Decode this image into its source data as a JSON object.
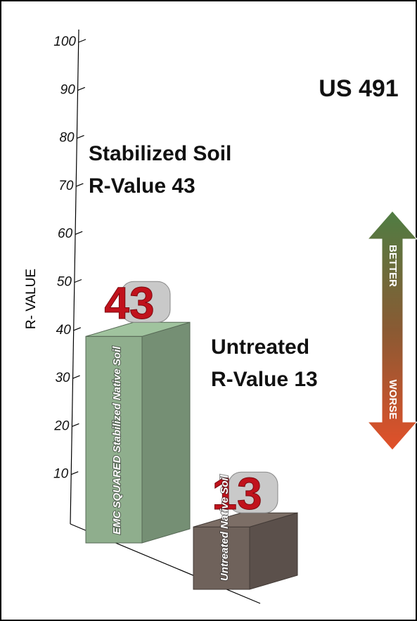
{
  "chart_data": {
    "type": "bar",
    "title": "US 491",
    "categories": [
      "EMC SQUARED Stabilized Native Soil",
      "Untreated Native Soil"
    ],
    "values": [
      43,
      13
    ],
    "colors": [
      "#8fae8d",
      "#6f625b"
    ],
    "y_label": "R- VALUE",
    "ylim": [
      0,
      100
    ],
    "yticks": [
      10,
      20,
      30,
      40,
      50,
      60,
      70,
      80,
      90,
      100
    ],
    "annotations": [
      [
        "Stabilized Soil",
        "R-Value 43"
      ],
      [
        "Untreated",
        "R-Value 13"
      ]
    ],
    "arrow_labels": [
      "BETTER",
      "WORSE"
    ]
  }
}
